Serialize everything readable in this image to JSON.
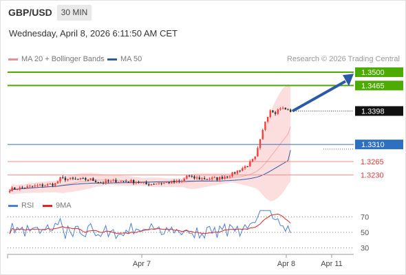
{
  "header": {
    "symbol": "GBP/USD",
    "timeframe": "30 MIN",
    "datetime": "Wednesday, April 8, 2026 6:11:50 AM CET"
  },
  "legend": {
    "ma20_label": "MA 20 + Bollinger Bands",
    "ma50_label": "MA 50",
    "credit": "Research © 2026 Trading Central",
    "rsi_label": "RSI",
    "ma9_label": "9MA"
  },
  "colors": {
    "candle_up": "#ff3b3b",
    "candle_down": "#333333",
    "bollinger_fill": "#fbd3d3",
    "ma20": "#f4a8a8",
    "ma50": "#2a5aa8",
    "target": "#4caa00",
    "pivot": "#2f6fc0",
    "support": "#f38c8c",
    "arrow": "#2a5aa8",
    "rsi": "#4a7fd8",
    "rsi_ma9": "#e02424"
  },
  "chart_data": [
    {
      "type": "candlestick",
      "title": "GBP/USD",
      "ylim": [
        1.318,
        1.352
      ],
      "x_ticks": [
        "Apr 7",
        "Apr 8",
        "Apr 11"
      ],
      "levels": [
        {
          "value": 1.35,
          "label": "1.3500",
          "kind": "target"
        },
        {
          "value": 1.3465,
          "label": "1.3465",
          "kind": "target"
        },
        {
          "value": 1.3398,
          "label": "1.3398",
          "kind": "last-price"
        },
        {
          "value": 1.331,
          "label": "1.3310",
          "kind": "pivot"
        },
        {
          "value": 1.3265,
          "label": "1.3265",
          "kind": "support"
        },
        {
          "value": 1.323,
          "label": "1.3230",
          "kind": "support"
        }
      ],
      "last_price": 1.3398,
      "ma50_end": 1.3295,
      "ma20_end": 1.3357,
      "bollinger_upper_end": 1.3465,
      "bollinger_lower_end": 1.3212
    },
    {
      "type": "line",
      "title": "RSI",
      "ylim": [
        20,
        80
      ],
      "y_ticks": [
        70,
        50,
        30
      ],
      "series": [
        {
          "name": "RSI"
        },
        {
          "name": "9MA"
        }
      ]
    }
  ]
}
